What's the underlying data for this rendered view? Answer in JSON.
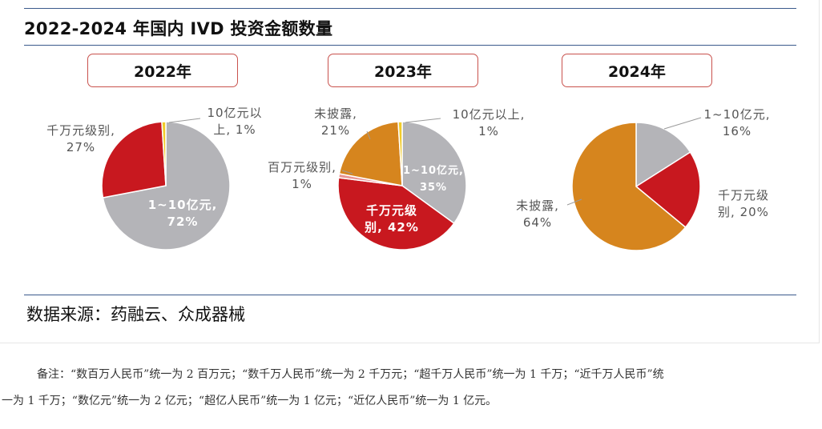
{
  "chart_data": {
    "type": "pie",
    "title": "2022-2024 年国内 IVD 投资金额数量",
    "source": "数据来源：药融云、众成器械",
    "colors": {
      "1~10亿元": "#b4b4b8",
      "千万元级别": "#c8181f",
      "10亿元以上": "#f1cc2a",
      "百万元级别": "#e99593",
      "未披露": "#d6851e"
    },
    "charts": [
      {
        "year": "2022年",
        "slices": [
          {
            "category": "1~10亿元",
            "value": 72,
            "label_lines": [
              "1~10亿元,",
              "72%"
            ]
          },
          {
            "category": "千万元级别",
            "value": 27,
            "label_lines": [
              "千万元级别,",
              "27%"
            ]
          },
          {
            "category": "10亿元以上",
            "value": 1,
            "label_lines": [
              "10亿元以",
              "上, 1%"
            ]
          }
        ]
      },
      {
        "year": "2023年",
        "slices": [
          {
            "category": "1~10亿元",
            "value": 35,
            "label_lines": [
              "1~10亿元,",
              "35%"
            ]
          },
          {
            "category": "千万元级别",
            "value": 42,
            "label_lines": [
              "千万元级",
              "别, 42%"
            ]
          },
          {
            "category": "百万元级别",
            "value": 1,
            "label_lines": [
              "百万元级别,",
              "1%"
            ]
          },
          {
            "category": "未披露",
            "value": 21,
            "label_lines": [
              "未披露,",
              "21%"
            ]
          },
          {
            "category": "10亿元以上",
            "value": 1,
            "label_lines": [
              "10亿元以上,",
              "1%"
            ]
          }
        ]
      },
      {
        "year": "2024年",
        "slices": [
          {
            "category": "1~10亿元",
            "value": 16,
            "label_lines": [
              "1~10亿元,",
              "16%"
            ]
          },
          {
            "category": "千万元级别",
            "value": 20,
            "label_lines": [
              "千万元级",
              "别, 20%"
            ]
          },
          {
            "category": "未披露",
            "value": 64,
            "label_lines": [
              "未披露,",
              "64%"
            ]
          }
        ]
      }
    ]
  },
  "note": {
    "line1": "备注：“数百万人民币”统一为 2 百万元；“数千万人民币”统一为 2 千万元；“超千万人民币”统一为 1 千万；“近千万人民币”统",
    "line2": "一为 1 千万；“数亿元”统一为 2 亿元；“超亿人民币”统一为 1 亿元；“近亿人民币”统一为 1 亿元。"
  }
}
